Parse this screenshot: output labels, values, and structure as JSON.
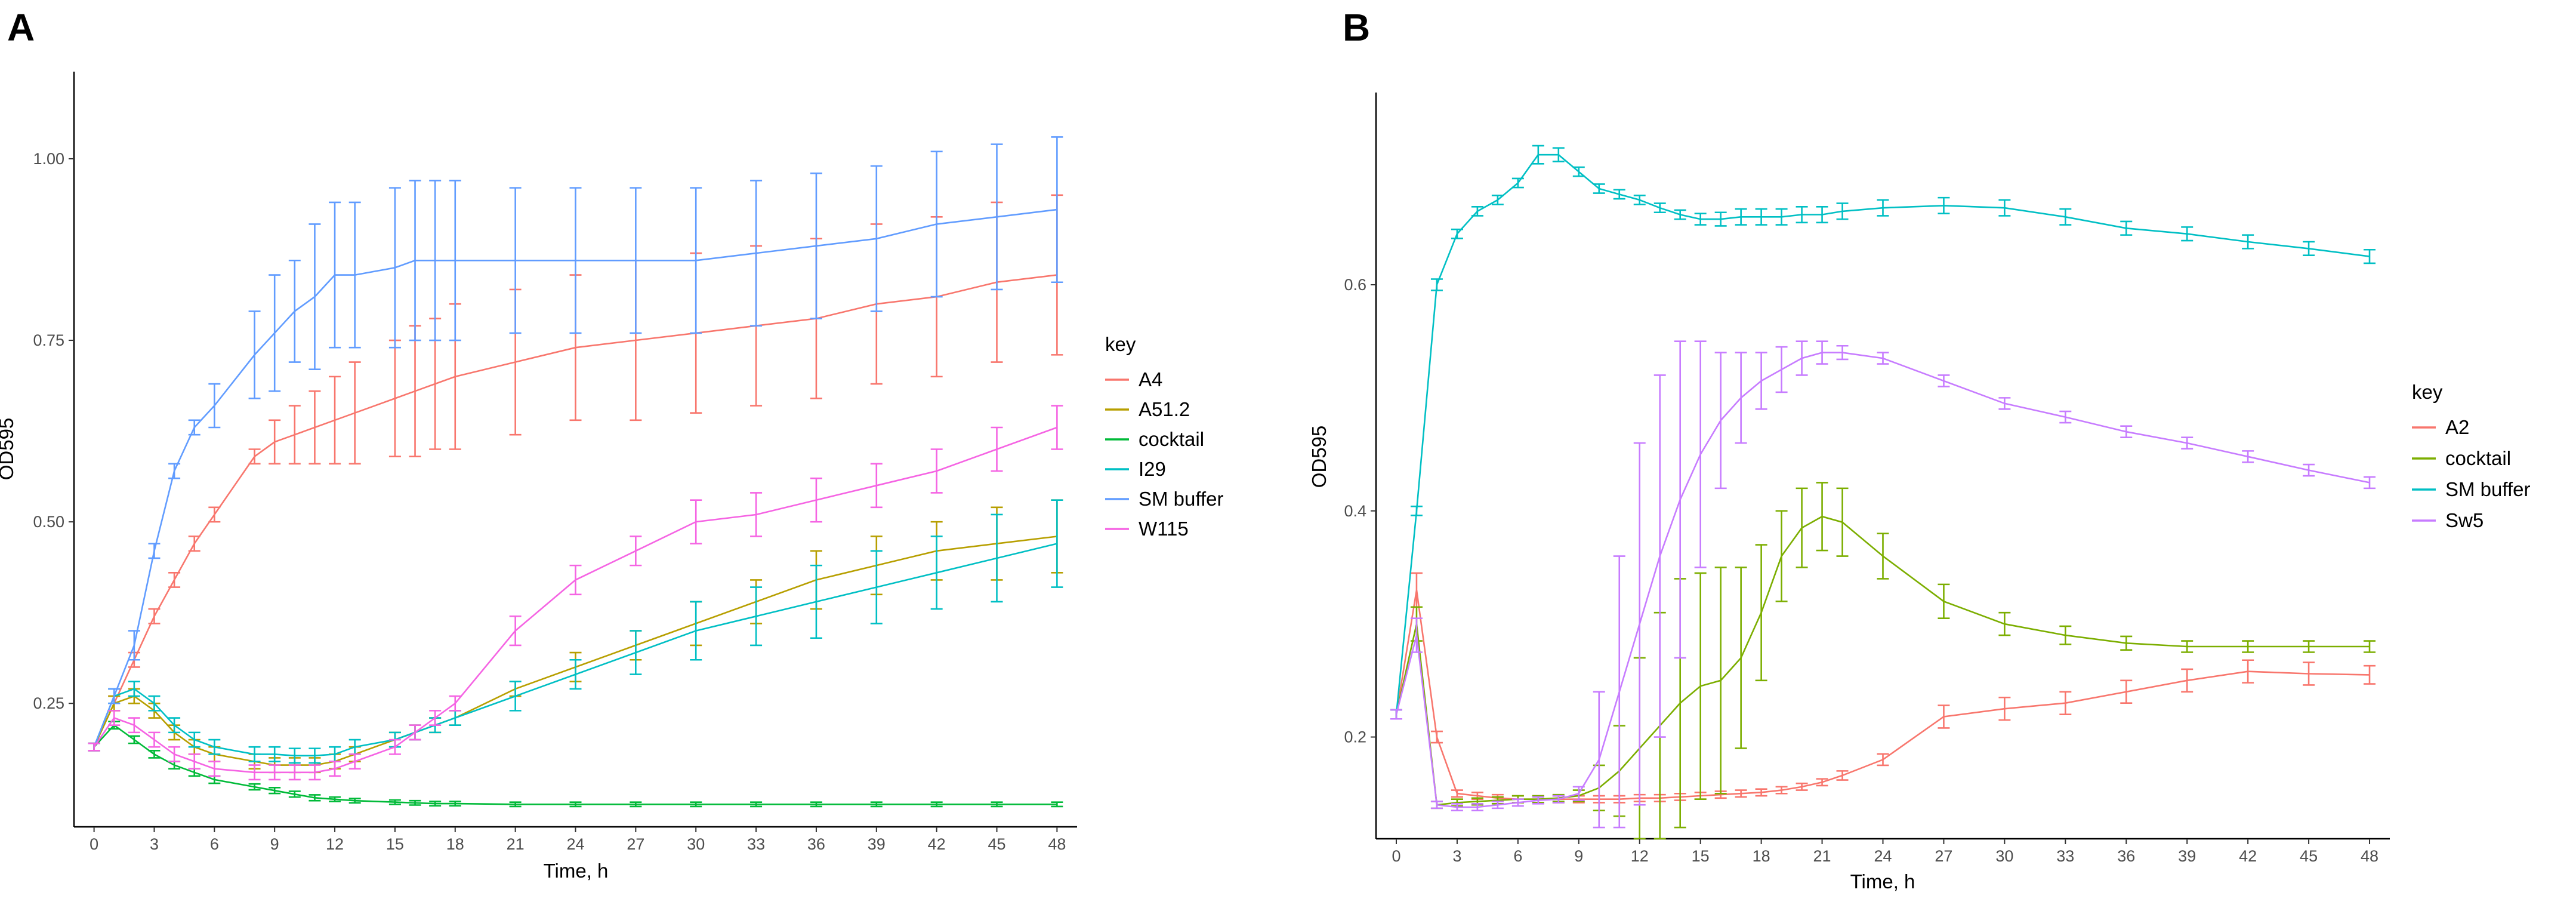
{
  "chart_data": [
    {
      "panel": "A",
      "type": "line",
      "title": "",
      "xlabel": "Time, h",
      "ylabel": "OD595",
      "xlim": [
        -1,
        49
      ],
      "ylim": [
        0.08,
        1.12
      ],
      "xticks": [
        0,
        3,
        6,
        9,
        12,
        15,
        18,
        21,
        24,
        27,
        30,
        33,
        36,
        39,
        42,
        45,
        48
      ],
      "xtick_labels": [
        "0",
        "3",
        "6",
        "9",
        "12",
        "15",
        "18",
        "21",
        "24",
        "27",
        "30",
        "33",
        "36",
        "39",
        "42",
        "45",
        "48"
      ],
      "yticks": [
        0.25,
        0.5,
        0.75,
        1.0
      ],
      "ytick_labels": [
        "0.25",
        "0.50",
        "0.75",
        "1.00"
      ],
      "legend": {
        "title": "key",
        "placement": "right"
      },
      "x": [
        0,
        1,
        2,
        3,
        4,
        5,
        6,
        8,
        9,
        10,
        11,
        12,
        13,
        15,
        16,
        17,
        18,
        21,
        24,
        27,
        30,
        33,
        36,
        39,
        42,
        45,
        48
      ],
      "series": [
        {
          "name": "A4",
          "color": "#F8766D",
          "values": [
            0.19,
            0.25,
            0.31,
            0.37,
            0.42,
            0.47,
            0.51,
            0.59,
            0.61,
            0.62,
            0.63,
            0.64,
            0.65,
            0.67,
            0.68,
            0.69,
            0.7,
            0.72,
            0.74,
            0.75,
            0.76,
            0.77,
            0.78,
            0.8,
            0.81,
            0.83,
            0.84
          ],
          "errors": [
            0.005,
            0.01,
            0.01,
            0.01,
            0.01,
            0.01,
            0.01,
            0.01,
            0.03,
            0.04,
            0.05,
            0.06,
            0.07,
            0.08,
            0.09,
            0.09,
            0.1,
            0.1,
            0.1,
            0.11,
            0.11,
            0.11,
            0.11,
            0.11,
            0.11,
            0.11,
            0.11
          ]
        },
        {
          "name": "A51.2",
          "color": "#B79F00",
          "values": [
            0.19,
            0.25,
            0.26,
            0.24,
            0.21,
            0.19,
            0.18,
            0.17,
            0.165,
            0.165,
            0.165,
            0.17,
            0.18,
            0.2,
            0.21,
            0.22,
            0.23,
            0.27,
            0.3,
            0.33,
            0.36,
            0.39,
            0.42,
            0.44,
            0.46,
            0.47,
            0.48
          ],
          "errors": [
            0.005,
            0.01,
            0.01,
            0.01,
            0.01,
            0.01,
            0.01,
            0.01,
            0.01,
            0.01,
            0.01,
            0.01,
            0.01,
            0.01,
            0.01,
            0.01,
            0.01,
            0.01,
            0.02,
            0.02,
            0.03,
            0.03,
            0.04,
            0.04,
            0.04,
            0.05,
            0.05
          ]
        },
        {
          "name": "cocktail",
          "color": "#00BA38",
          "values": [
            0.19,
            0.22,
            0.2,
            0.18,
            0.165,
            0.155,
            0.145,
            0.135,
            0.13,
            0.125,
            0.12,
            0.118,
            0.116,
            0.114,
            0.113,
            0.112,
            0.112,
            0.111,
            0.111,
            0.111,
            0.111,
            0.111,
            0.111,
            0.111,
            0.111,
            0.111,
            0.111
          ],
          "errors": [
            0.005,
            0.005,
            0.005,
            0.005,
            0.005,
            0.005,
            0.005,
            0.004,
            0.004,
            0.004,
            0.004,
            0.003,
            0.003,
            0.003,
            0.003,
            0.003,
            0.003,
            0.003,
            0.003,
            0.003,
            0.003,
            0.003,
            0.003,
            0.003,
            0.003,
            0.003,
            0.003
          ]
        },
        {
          "name": "I29",
          "color": "#00BFC4",
          "values": [
            0.19,
            0.26,
            0.27,
            0.25,
            0.22,
            0.2,
            0.19,
            0.18,
            0.18,
            0.178,
            0.178,
            0.18,
            0.19,
            0.2,
            0.21,
            0.22,
            0.23,
            0.26,
            0.29,
            0.32,
            0.35,
            0.37,
            0.39,
            0.41,
            0.43,
            0.45,
            0.47
          ],
          "errors": [
            0.005,
            0.01,
            0.01,
            0.01,
            0.01,
            0.01,
            0.01,
            0.01,
            0.01,
            0.01,
            0.01,
            0.01,
            0.01,
            0.01,
            0.01,
            0.01,
            0.01,
            0.02,
            0.02,
            0.03,
            0.04,
            0.04,
            0.05,
            0.05,
            0.05,
            0.06,
            0.06
          ]
        },
        {
          "name": "SM buffer",
          "color": "#619CFF",
          "values": [
            0.19,
            0.26,
            0.33,
            0.46,
            0.57,
            0.63,
            0.66,
            0.73,
            0.76,
            0.79,
            0.81,
            0.84,
            0.84,
            0.85,
            0.86,
            0.86,
            0.86,
            0.86,
            0.86,
            0.86,
            0.86,
            0.87,
            0.88,
            0.89,
            0.91,
            0.92,
            0.93
          ],
          "errors": [
            0.005,
            0.01,
            0.02,
            0.01,
            0.01,
            0.01,
            0.03,
            0.06,
            0.08,
            0.07,
            0.1,
            0.1,
            0.1,
            0.11,
            0.11,
            0.11,
            0.11,
            0.1,
            0.1,
            0.1,
            0.1,
            0.1,
            0.1,
            0.1,
            0.1,
            0.1,
            0.1
          ]
        },
        {
          "name": "W115",
          "color": "#F564E3",
          "values": [
            0.19,
            0.23,
            0.22,
            0.2,
            0.18,
            0.17,
            0.16,
            0.155,
            0.155,
            0.155,
            0.155,
            0.16,
            0.17,
            0.19,
            0.21,
            0.23,
            0.25,
            0.35,
            0.42,
            0.46,
            0.5,
            0.51,
            0.53,
            0.55,
            0.57,
            0.6,
            0.63
          ],
          "errors": [
            0.005,
            0.01,
            0.01,
            0.01,
            0.01,
            0.01,
            0.01,
            0.01,
            0.01,
            0.01,
            0.01,
            0.01,
            0.01,
            0.01,
            0.01,
            0.01,
            0.01,
            0.02,
            0.02,
            0.02,
            0.03,
            0.03,
            0.03,
            0.03,
            0.03,
            0.03,
            0.03
          ]
        }
      ]
    },
    {
      "panel": "B",
      "type": "line",
      "title": "",
      "xlabel": "Time, h",
      "ylabel": "OD595",
      "xlim": [
        -1,
        49
      ],
      "ylim": [
        0.11,
        0.77
      ],
      "xticks": [
        0,
        3,
        6,
        9,
        12,
        15,
        18,
        21,
        24,
        27,
        30,
        33,
        36,
        39,
        42,
        45,
        48
      ],
      "xtick_labels": [
        "0",
        "3",
        "6",
        "9",
        "12",
        "15",
        "18",
        "21",
        "24",
        "27",
        "30",
        "33",
        "36",
        "39",
        "42",
        "45",
        "48"
      ],
      "yticks": [
        0.2,
        0.4,
        0.6
      ],
      "ytick_labels": [
        "0.2",
        "0.4",
        "0.6"
      ],
      "legend": {
        "title": "key",
        "placement": "right"
      },
      "x": [
        0,
        1,
        2,
        3,
        4,
        5,
        6,
        7,
        8,
        9,
        10,
        11,
        12,
        13,
        14,
        15,
        16,
        17,
        18,
        19,
        20,
        21,
        22,
        24,
        27,
        30,
        33,
        36,
        39,
        42,
        45,
        48
      ],
      "series": [
        {
          "name": "A2",
          "color": "#F8766D",
          "values": [
            0.22,
            0.33,
            0.2,
            0.15,
            0.148,
            0.146,
            0.145,
            0.145,
            0.145,
            0.145,
            0.145,
            0.145,
            0.146,
            0.146,
            0.147,
            0.148,
            0.149,
            0.15,
            0.151,
            0.153,
            0.156,
            0.16,
            0.166,
            0.18,
            0.218,
            0.225,
            0.23,
            0.24,
            0.25,
            0.258,
            0.256,
            0.255
          ],
          "errors": [
            0.004,
            0.015,
            0.005,
            0.003,
            0.003,
            0.003,
            0.003,
            0.003,
            0.003,
            0.003,
            0.003,
            0.003,
            0.003,
            0.003,
            0.003,
            0.003,
            0.003,
            0.003,
            0.003,
            0.003,
            0.003,
            0.003,
            0.004,
            0.005,
            0.01,
            0.01,
            0.01,
            0.01,
            0.01,
            0.01,
            0.01,
            0.008
          ]
        },
        {
          "name": "cocktail",
          "color": "#7CAE00",
          "values": [
            0.22,
            0.3,
            0.14,
            0.142,
            0.143,
            0.144,
            0.145,
            0.145,
            0.146,
            0.148,
            0.155,
            0.17,
            0.19,
            0.21,
            0.23,
            0.245,
            0.25,
            0.27,
            0.31,
            0.36,
            0.385,
            0.395,
            0.39,
            0.36,
            0.32,
            0.3,
            0.29,
            0.283,
            0.28,
            0.28,
            0.28,
            0.28
          ],
          "errors": [
            0.004,
            0.015,
            0.003,
            0.003,
            0.003,
            0.003,
            0.003,
            0.003,
            0.003,
            0.005,
            0.02,
            0.04,
            0.08,
            0.1,
            0.11,
            0.1,
            0.1,
            0.08,
            0.06,
            0.04,
            0.035,
            0.03,
            0.03,
            0.02,
            0.015,
            0.01,
            0.008,
            0.006,
            0.005,
            0.005,
            0.005,
            0.005
          ]
        },
        {
          "name": "SM buffer",
          "color": "#00BFC4",
          "values": [
            0.22,
            0.4,
            0.6,
            0.645,
            0.665,
            0.675,
            0.69,
            0.715,
            0.715,
            0.7,
            0.685,
            0.68,
            0.675,
            0.668,
            0.662,
            0.658,
            0.658,
            0.66,
            0.66,
            0.66,
            0.662,
            0.662,
            0.665,
            0.668,
            0.67,
            0.668,
            0.66,
            0.65,
            0.645,
            0.638,
            0.632,
            0.625
          ],
          "errors": [
            0.004,
            0.004,
            0.005,
            0.004,
            0.004,
            0.004,
            0.004,
            0.008,
            0.006,
            0.004,
            0.004,
            0.004,
            0.004,
            0.004,
            0.004,
            0.005,
            0.006,
            0.007,
            0.007,
            0.007,
            0.007,
            0.007,
            0.007,
            0.007,
            0.007,
            0.007,
            0.007,
            0.006,
            0.006,
            0.006,
            0.006,
            0.006
          ]
        },
        {
          "name": "Sw5",
          "color": "#C77CFF",
          "values": [
            0.22,
            0.29,
            0.14,
            0.138,
            0.138,
            0.14,
            0.142,
            0.144,
            0.145,
            0.15,
            0.18,
            0.24,
            0.3,
            0.36,
            0.41,
            0.45,
            0.48,
            0.5,
            0.515,
            0.525,
            0.535,
            0.54,
            0.54,
            0.535,
            0.515,
            0.495,
            0.483,
            0.47,
            0.46,
            0.448,
            0.436,
            0.425
          ],
          "errors": [
            0.004,
            0.015,
            0.003,
            0.003,
            0.003,
            0.003,
            0.003,
            0.003,
            0.003,
            0.006,
            0.06,
            0.12,
            0.16,
            0.16,
            0.14,
            0.1,
            0.06,
            0.04,
            0.025,
            0.02,
            0.015,
            0.01,
            0.006,
            0.005,
            0.005,
            0.005,
            0.005,
            0.005,
            0.005,
            0.005,
            0.005,
            0.005
          ]
        }
      ]
    }
  ]
}
